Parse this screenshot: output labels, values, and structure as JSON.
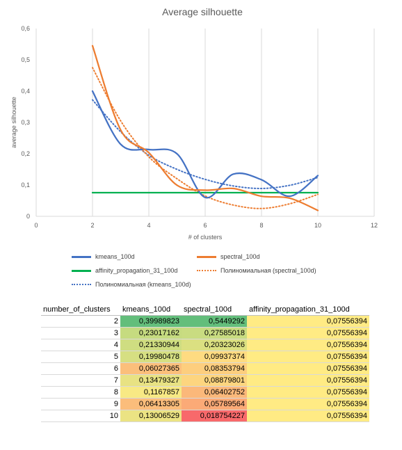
{
  "chart_data": {
    "type": "line",
    "title": "Average silhouette",
    "xlabel": "# of clusters",
    "ylabel": "average silhouette",
    "xlim": [
      0,
      12
    ],
    "ylim": [
      0,
      0.6
    ],
    "xticks": [
      "0",
      "2",
      "4",
      "6",
      "8",
      "10",
      "12"
    ],
    "yticks": [
      "0",
      "0,1",
      "0,2",
      "0,3",
      "0,4",
      "0,5",
      "0,6"
    ],
    "grid": "vertical",
    "legend_position": "bottom",
    "x": [
      2,
      3,
      4,
      5,
      6,
      7,
      8,
      9,
      10
    ],
    "series": [
      {
        "name": "kmeans_100d",
        "color": "#4472c4",
        "style": "smooth",
        "values": [
          0.39989823,
          0.23017162,
          0.21330944,
          0.19980478,
          0.06027365,
          0.13479327,
          0.1167857,
          0.06413305,
          0.13006529
        ]
      },
      {
        "name": "spectral_100d",
        "color": "#ed7d31",
        "style": "smooth",
        "values": [
          0.5449292,
          0.27585018,
          0.20323026,
          0.09937374,
          0.08353794,
          0.08879801,
          0.06402752,
          0.05789564,
          0.018754227
        ]
      },
      {
        "name": "affinity_propagation_31_100d",
        "color": "#00b050",
        "style": "solid",
        "values": [
          0.07556394,
          0.07556394,
          0.07556394,
          0.07556394,
          0.07556394,
          0.07556394,
          0.07556394,
          0.07556394,
          0.07556394
        ]
      },
      {
        "name": "Полиномиальная (spectral_100d)",
        "color": "#ed7d31",
        "style": "dotted",
        "values": [
          0.475,
          0.305,
          0.19,
          0.12,
          0.065,
          0.036,
          0.025,
          0.04,
          0.07
        ]
      },
      {
        "name": "Полиномиальная (kmeans_100d)",
        "color": "#4472c4",
        "style": "dotted",
        "values": [
          0.372,
          0.27,
          0.195,
          0.15,
          0.118,
          0.097,
          0.089,
          0.099,
          0.124
        ]
      }
    ],
    "table": {
      "headers": [
        "number_of_clusters",
        "kmeans_100d",
        "spectral_100d",
        "affinity_propagation_31_100d"
      ],
      "rows": [
        [
          "2",
          "0,39989823",
          "0,5449292",
          "0,07556394"
        ],
        [
          "3",
          "0,23017162",
          "0,27585018",
          "0,07556394"
        ],
        [
          "4",
          "0,21330944",
          "0,20323026",
          "0,07556394"
        ],
        [
          "5",
          "0,19980478",
          "0,09937374",
          "0,07556394"
        ],
        [
          "6",
          "0,06027365",
          "0,08353794",
          "0,07556394"
        ],
        [
          "7",
          "0,13479327",
          "0,08879801",
          "0,07556394"
        ],
        [
          "8",
          "0,1167857",
          "0,06402752",
          "0,07556394"
        ],
        [
          "9",
          "0,06413305",
          "0,05789564",
          "0,07556394"
        ],
        [
          "10",
          "0,13006529",
          "0,018754227",
          "0,07556394"
        ]
      ],
      "cell_colors": {
        "kmeans": [
          "#63be7b",
          "#c6db80",
          "#cfdd81",
          "#d6df82",
          "#fbbf7b",
          "#e8e283",
          "#f8e984",
          "#fbbd7b",
          "#ebe383"
        ],
        "spectral": [
          "#63be7b",
          "#c9dc81",
          "#dbe081",
          "#fedb81",
          "#fdce7e",
          "#fdd57f",
          "#fbb87a",
          "#fbaa77",
          "#f8696b"
        ],
        "affinity": "#ffeb84"
      }
    }
  }
}
